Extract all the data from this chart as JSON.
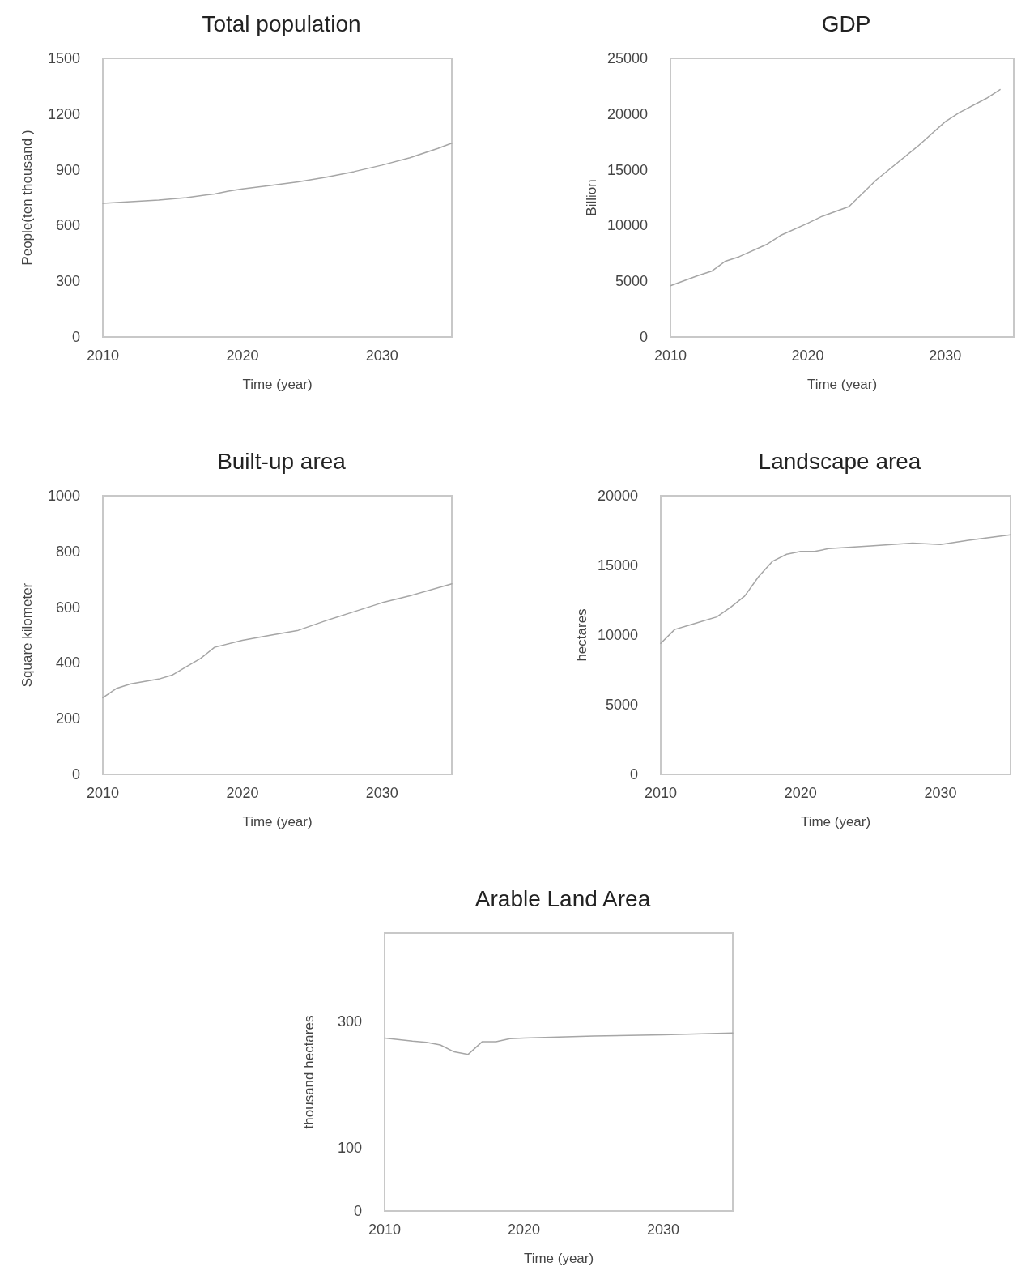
{
  "chart_data": [
    {
      "type": "line",
      "title": "Total population",
      "xlabel": "Time (year)",
      "ylabel": "People(ten thousand )",
      "xlim": [
        2010,
        2035
      ],
      "xticks": [
        2010,
        2020,
        2030
      ],
      "ylim": [
        0,
        1500
      ],
      "yticks": [
        0,
        300,
        600,
        900,
        1200,
        1500
      ],
      "grid": false,
      "marker": "none",
      "line_style": "solid",
      "series": [
        {
          "color": "#a6a6a6",
          "x": [
            2010,
            2012,
            2014,
            2016,
            2018,
            2019,
            2020,
            2022,
            2024,
            2026,
            2028,
            2030,
            2032,
            2034,
            2035
          ],
          "values": [
            720,
            728,
            737,
            750,
            770,
            785,
            797,
            815,
            835,
            860,
            890,
            925,
            965,
            1015,
            1043
          ]
        }
      ]
    },
    {
      "type": "line",
      "title": "GDP",
      "xlabel": "Time (year)",
      "ylabel": "Billion",
      "xlim": [
        2010,
        2035
      ],
      "xticks": [
        2010,
        2020,
        2030
      ],
      "ylim": [
        0,
        25000
      ],
      "yticks": [
        0,
        5000,
        10000,
        15000,
        20000,
        25000
      ],
      "grid": false,
      "marker": "none",
      "line_style": "solid",
      "series": [
        {
          "color": "#a6a6a6",
          "x": [
            2010,
            2012,
            2013,
            2014,
            2015,
            2017,
            2018,
            2020,
            2021,
            2023,
            2025,
            2026,
            2028,
            2030,
            2031,
            2033,
            2034
          ],
          "values": [
            4600,
            5500,
            5900,
            6800,
            7200,
            8300,
            9100,
            10200,
            10800,
            11700,
            14100,
            15100,
            17100,
            19300,
            20100,
            21400,
            22200
          ]
        }
      ]
    },
    {
      "type": "line",
      "title": "Built-up area",
      "xlabel": "Time (year)",
      "ylabel": "Square kilometer",
      "xlim": [
        2010,
        2035
      ],
      "xticks": [
        2010,
        2020,
        2030
      ],
      "ylim": [
        0,
        1000
      ],
      "yticks": [
        0,
        200,
        400,
        600,
        800,
        1000
      ],
      "grid": false,
      "marker": "none",
      "line_style": "solid",
      "series": [
        {
          "color": "#a6a6a6",
          "x": [
            2010,
            2011,
            2012,
            2014,
            2015,
            2016,
            2017,
            2018,
            2020,
            2022,
            2024,
            2026,
            2028,
            2030,
            2032,
            2035
          ],
          "values": [
            275,
            309,
            325,
            342,
            357,
            387,
            416,
            456,
            481,
            499,
            517,
            552,
            584,
            616,
            641,
            684
          ]
        }
      ]
    },
    {
      "type": "line",
      "title": "Landscape area",
      "xlabel": "Time (year)",
      "ylabel": "hectares",
      "xlim": [
        2010,
        2035
      ],
      "xticks": [
        2010,
        2020,
        2030
      ],
      "ylim": [
        0,
        20000
      ],
      "yticks": [
        0,
        5000,
        10000,
        15000,
        20000
      ],
      "grid": false,
      "marker": "none",
      "line_style": "solid",
      "series": [
        {
          "color": "#a6a6a6",
          "x": [
            2010,
            2011,
            2012,
            2014,
            2015,
            2016,
            2017,
            2018,
            2019,
            2020,
            2021,
            2022,
            2025,
            2028,
            2030,
            2032,
            2035
          ],
          "values": [
            9400,
            10400,
            10700,
            11300,
            12000,
            12800,
            14200,
            15300,
            15800,
            16000,
            16000,
            16200,
            16400,
            16600,
            16500,
            16800,
            17200
          ]
        }
      ]
    },
    {
      "type": "line",
      "title": "Arable Land Area",
      "xlabel": "Time (year)",
      "ylabel": "thousand hectares",
      "xlim": [
        2010,
        2035
      ],
      "xticks": [
        2010,
        2020,
        2030
      ],
      "ylim": [
        0,
        440
      ],
      "yticks": [
        0,
        100,
        300
      ],
      "grid": false,
      "marker": "none",
      "line_style": "solid",
      "series": [
        {
          "color": "#a6a6a6",
          "x": [
            2010,
            2012,
            2013,
            2014,
            2015,
            2016,
            2017,
            2018,
            2019,
            2020,
            2025,
            2030,
            2035
          ],
          "values": [
            274,
            269,
            267,
            263,
            252,
            248,
            268,
            268,
            273,
            274,
            277,
            279,
            282
          ]
        }
      ]
    }
  ]
}
